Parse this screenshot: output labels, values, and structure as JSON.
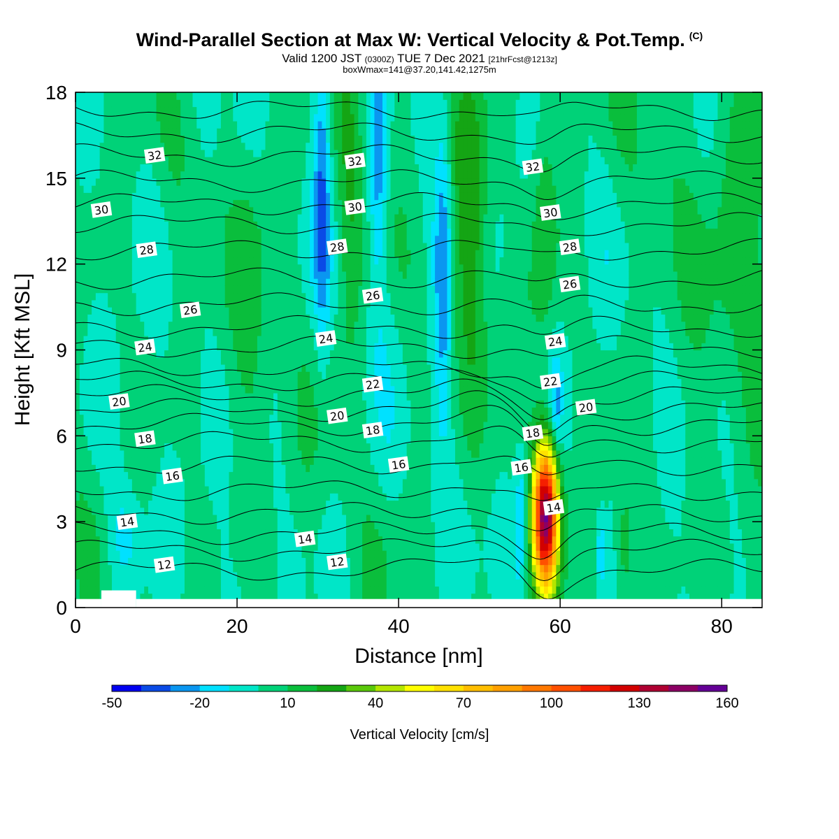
{
  "title": {
    "main": "Wind-Parallel Section at Max W: Vertical Velocity & Pot.Temp.",
    "copyright": "(C)",
    "valid_prefix": "Valid 1200 JST",
    "valid_utc": "(0300Z)",
    "valid_date": "TUE 7 Dec 2021",
    "forecast": "[21hrFcst@1213z]",
    "boxwmax": "boxWmax=141@37.20,141.42,1275m"
  },
  "chart_data": {
    "type": "heatmap",
    "xlabel": "Distance [nm]",
    "ylabel": "Height [Kft MSL]",
    "xlim": [
      0,
      85
    ],
    "ylim": [
      0,
      18
    ],
    "x_ticks": [
      0,
      20,
      40,
      60,
      80
    ],
    "y_ticks": [
      0,
      3,
      6,
      9,
      12,
      15,
      18
    ],
    "colorbar": {
      "label": "Vertical Velocity [cm/s]",
      "levels": [
        -50,
        -40,
        -30,
        -20,
        -10,
        0,
        10,
        20,
        30,
        40,
        50,
        60,
        70,
        80,
        90,
        100,
        110,
        120,
        130,
        140,
        150,
        160
      ],
      "tick_labels": [
        "-50",
        "-20",
        "10",
        "40",
        "70",
        "100",
        "130",
        "160"
      ],
      "tick_values": [
        -50,
        -20,
        10,
        40,
        70,
        100,
        130,
        160
      ],
      "colors": [
        "#0000f0",
        "#0a4be6",
        "#0a96f0",
        "#00e1ff",
        "#00e6c8",
        "#00d278",
        "#0abe3c",
        "#14a514",
        "#5ac80a",
        "#b4e600",
        "#ffff00",
        "#ffe100",
        "#ffbe00",
        "#ffa000",
        "#ff7800",
        "#ff5000",
        "#f51e00",
        "#d20000",
        "#af0032",
        "#8c0064",
        "#640096"
      ]
    },
    "features": [
      {
        "x": 30.5,
        "z": 15.0,
        "sx": 0.7,
        "sz": 4.0,
        "w": -28
      },
      {
        "x": 37.5,
        "z": 16.0,
        "sx": 0.8,
        "sz": 3.5,
        "w": -28
      },
      {
        "x": 45.5,
        "z": 12.0,
        "sx": 0.8,
        "sz": 4.0,
        "w": -30
      },
      {
        "x": 34.0,
        "z": 15.0,
        "sx": 1.2,
        "sz": 4.0,
        "w": 18
      },
      {
        "x": 49.0,
        "z": 14.0,
        "sx": 1.6,
        "sz": 4.5,
        "w": 24
      },
      {
        "x": 58.0,
        "z": 14.0,
        "sx": 1.0,
        "sz": 3.5,
        "w": 18
      },
      {
        "x": 58.2,
        "z": 3.2,
        "sx": 1.1,
        "sz": 1.8,
        "w": 141
      },
      {
        "x": 55.2,
        "z": 3.2,
        "sx": 0.6,
        "sz": 1.6,
        "w": -25
      },
      {
        "x": 59.5,
        "z": 7.0,
        "sx": 0.5,
        "sz": 1.2,
        "w": -22
      },
      {
        "x": 68.0,
        "z": 2.2,
        "sx": 0.8,
        "sz": 1.5,
        "w": 20
      },
      {
        "x": 65.0,
        "z": 2.0,
        "sx": 0.4,
        "sz": 1.0,
        "w": -20
      },
      {
        "x": 88.0,
        "z": 14.0,
        "sx": 8.0,
        "sz": 6.0,
        "w": 14
      },
      {
        "x": 22.0,
        "z": 12.0,
        "sx": 2.0,
        "sz": 5.0,
        "w": 9
      },
      {
        "x": 6.0,
        "z": 2.5,
        "sx": 1.5,
        "sz": 1.5,
        "w": -15
      }
    ],
    "theta_contours": [
      {
        "level": 12,
        "z": 1.3
      },
      {
        "level": 13,
        "z": 2.0
      },
      {
        "level": 14,
        "z": 2.6
      },
      {
        "level": 15,
        "z": 3.3
      },
      {
        "level": 16,
        "z": 4.1
      },
      {
        "level": 17,
        "z": 5.0
      },
      {
        "level": 18,
        "z": 5.8
      },
      {
        "level": 19,
        "z": 6.4
      },
      {
        "level": 20,
        "z": 6.9
      },
      {
        "level": 21,
        "z": 7.4
      },
      {
        "level": 22,
        "z": 7.9
      },
      {
        "level": 23,
        "z": 8.4
      },
      {
        "level": 24,
        "z": 9.1
      },
      {
        "level": 25,
        "z": 9.8
      },
      {
        "level": 26,
        "z": 10.6
      },
      {
        "level": 27,
        "z": 11.5
      },
      {
        "level": 28,
        "z": 12.5
      },
      {
        "level": 29,
        "z": 13.4
      },
      {
        "level": 30,
        "z": 14.1
      },
      {
        "level": 31,
        "z": 14.9
      },
      {
        "level": 32,
        "z": 15.8
      },
      {
        "level": 33,
        "z": 16.6
      },
      {
        "level": 34,
        "z": 17.4
      }
    ],
    "contour_labels": [
      {
        "text": "32",
        "x": 9.8,
        "z": 15.8
      },
      {
        "text": "32",
        "x": 34.6,
        "z": 15.6
      },
      {
        "text": "32",
        "x": 56.6,
        "z": 15.4
      },
      {
        "text": "30",
        "x": 3.2,
        "z": 13.9
      },
      {
        "text": "30",
        "x": 34.6,
        "z": 14.0
      },
      {
        "text": "30",
        "x": 58.8,
        "z": 13.8
      },
      {
        "text": "28",
        "x": 8.8,
        "z": 12.5
      },
      {
        "text": "28",
        "x": 32.4,
        "z": 12.6
      },
      {
        "text": "28",
        "x": 61.2,
        "z": 12.6
      },
      {
        "text": "26",
        "x": 14.2,
        "z": 10.4
      },
      {
        "text": "26",
        "x": 36.8,
        "z": 10.9
      },
      {
        "text": "26",
        "x": 61.2,
        "z": 11.3
      },
      {
        "text": "24",
        "x": 8.6,
        "z": 9.1
      },
      {
        "text": "24",
        "x": 31.0,
        "z": 9.4
      },
      {
        "text": "24",
        "x": 59.4,
        "z": 9.3
      },
      {
        "text": "22",
        "x": 36.8,
        "z": 7.8
      },
      {
        "text": "22",
        "x": 58.8,
        "z": 7.9
      },
      {
        "text": "20",
        "x": 5.4,
        "z": 7.2
      },
      {
        "text": "20",
        "x": 32.4,
        "z": 6.7
      },
      {
        "text": "20",
        "x": 63.2,
        "z": 7.0
      },
      {
        "text": "18",
        "x": 8.6,
        "z": 5.9
      },
      {
        "text": "18",
        "x": 36.8,
        "z": 6.2
      },
      {
        "text": "18",
        "x": 56.6,
        "z": 6.1
      },
      {
        "text": "16",
        "x": 12.0,
        "z": 4.6
      },
      {
        "text": "16",
        "x": 40.0,
        "z": 5.0
      },
      {
        "text": "16",
        "x": 55.2,
        "z": 4.9
      },
      {
        "text": "14",
        "x": 6.4,
        "z": 3.0
      },
      {
        "text": "14",
        "x": 28.4,
        "z": 2.4
      },
      {
        "text": "14",
        "x": 59.2,
        "z": 3.5
      },
      {
        "text": "12",
        "x": 11.0,
        "z": 1.5
      },
      {
        "text": "12",
        "x": 32.4,
        "z": 1.6
      }
    ],
    "terrain": [
      {
        "x0": 0,
        "x1": 3.2,
        "z": 0.3
      },
      {
        "x0": 3.2,
        "x1": 7.5,
        "z": 0.6
      },
      {
        "x0": 7.5,
        "x1": 85,
        "z": 0.3
      }
    ]
  }
}
